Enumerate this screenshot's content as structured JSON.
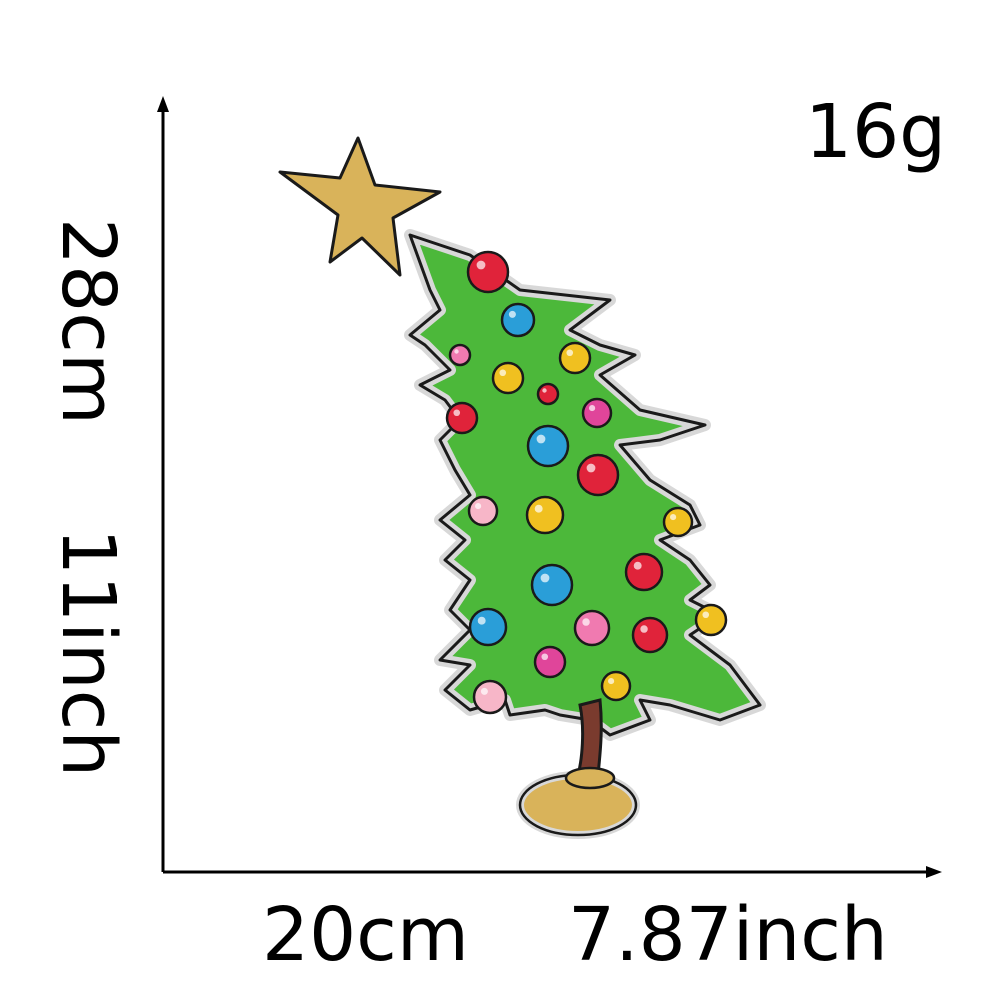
{
  "weight": "16g",
  "height_cm": "28cm",
  "height_inch": "11inch",
  "width_cm": "20cm",
  "width_inch": "7.87inch",
  "colors": {
    "tree_green": "#4cb83a",
    "star_gold": "#d9b35a",
    "trunk_brown": "#7a3b2e",
    "outline": "#1a1a1a",
    "glitter_border": "#d8d8d8"
  },
  "ornaments": [
    {
      "color": "#e0233a"
    },
    {
      "color": "#2a9ed8"
    },
    {
      "color": "#f07ab0"
    },
    {
      "color": "#f0c020"
    },
    {
      "color": "#f0c020"
    },
    {
      "color": "#e0233a"
    },
    {
      "color": "#e0233a"
    },
    {
      "color": "#e0459a"
    },
    {
      "color": "#2a9ed8"
    },
    {
      "color": "#e0233a"
    },
    {
      "color": "#f7b6c8"
    },
    {
      "color": "#f0c020"
    },
    {
      "color": "#f0c020"
    },
    {
      "color": "#2a9ed8"
    },
    {
      "color": "#e0233a"
    },
    {
      "color": "#2a9ed8"
    },
    {
      "color": "#f07ab0"
    },
    {
      "color": "#e0233a"
    },
    {
      "color": "#f0c020"
    },
    {
      "color": "#e0459a"
    },
    {
      "color": "#f7b6c8"
    },
    {
      "color": "#f0c020"
    }
  ]
}
